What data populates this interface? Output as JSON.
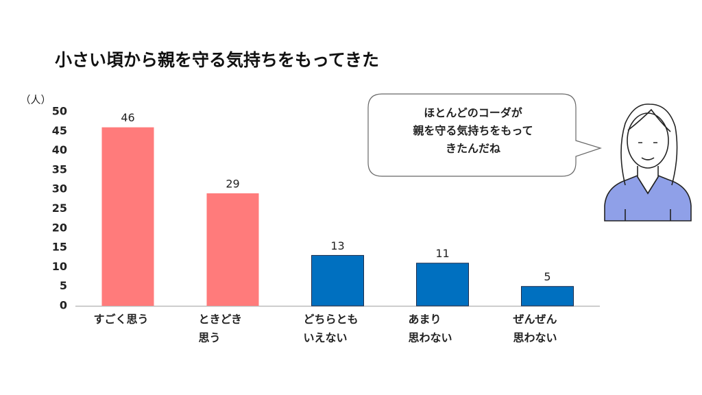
{
  "chart_data": {
    "type": "bar",
    "title": "小さい頃から親を守る気持ちをもってきた",
    "y_label": "（人）",
    "categories": [
      "すごく思う",
      "ときどき\n思う",
      "どちらとも\nいえない",
      "あまり\n思わない",
      "ぜんぜん\n思わない"
    ],
    "values": [
      46,
      29,
      13,
      11,
      5
    ],
    "colors": [
      "#ff7b7b",
      "#ff7b7b",
      "#0070c0",
      "#0070c0",
      "#0070c0"
    ],
    "ylim": [
      0,
      50
    ],
    "yticks": [
      0,
      5,
      10,
      15,
      20,
      25,
      30,
      35,
      40,
      45,
      50
    ],
    "grid": false,
    "annotation": "ほとんどのコーダが\n親を守る気持ちをもって\nきたんだね"
  }
}
